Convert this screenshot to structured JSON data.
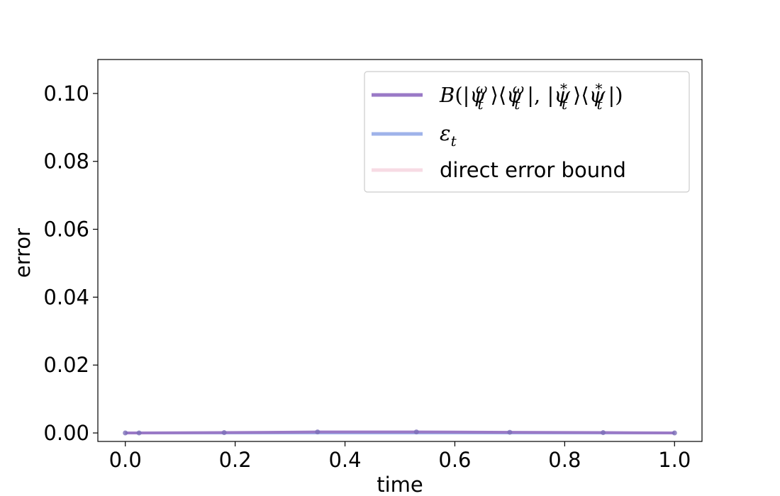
{
  "chart_data": {
    "type": "line",
    "xlabel": "time",
    "ylabel": "error",
    "xlim": [
      -0.05,
      1.05
    ],
    "ylim": [
      -0.0025,
      0.11
    ],
    "xticks": [
      "0.0",
      "0.2",
      "0.4",
      "0.6",
      "0.8",
      "1.0"
    ],
    "yticks": [
      "0.00",
      "0.02",
      "0.04",
      "0.06",
      "0.08",
      "0.10"
    ],
    "grid": false,
    "legend_position": "top-right",
    "series": [
      {
        "name": "B(|ψtω⟩⟨ψtω|, |ψt*⟩⟨ψt*|)",
        "color": "#9a79c6",
        "x": [
          0.0,
          0.025,
          0.18,
          0.35,
          0.53,
          0.7,
          0.87,
          1.0
        ],
        "y": [
          0.0,
          0.0,
          0.0001,
          0.0003,
          0.0003,
          0.0002,
          0.0001,
          0.0
        ]
      },
      {
        "name": "εt",
        "color": "#9fb3ea",
        "x": [
          0.0,
          0.025,
          0.18,
          0.35,
          0.53,
          0.7,
          0.87,
          1.0
        ],
        "y": [
          0.0,
          0.0,
          0.0,
          0.0,
          0.0,
          0.0,
          0.0,
          0.0
        ]
      },
      {
        "name": "direct error bound",
        "color": "#f7dbe4",
        "x": [
          0.0,
          0.025,
          0.18,
          0.35,
          0.53,
          0.7,
          0.87,
          1.0
        ],
        "y": [
          0.0,
          0.0,
          0.0,
          0.0,
          0.0,
          0.0,
          0.0,
          0.0
        ]
      }
    ]
  }
}
